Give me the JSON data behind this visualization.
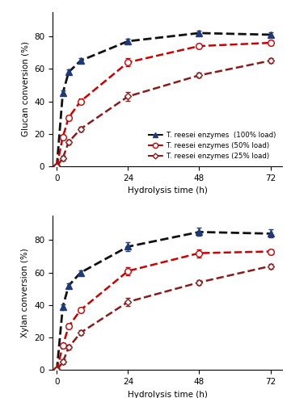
{
  "glucan": {
    "x": [
      0,
      2,
      4,
      8,
      24,
      48,
      72
    ],
    "series": [
      {
        "label": "T. reesei enzymes  (100% load)",
        "y": [
          0,
          45,
          58,
          65,
          77,
          82,
          81
        ],
        "yerr": [
          0,
          1.5,
          1.5,
          1.5,
          1.5,
          1.5,
          1.5
        ],
        "color": "#1f3a7a",
        "linecolor": "#111111",
        "marker": "^",
        "marker_hollow": false,
        "linestyle": "--",
        "markersize": 5.5,
        "linewidth": 2.0
      },
      {
        "label": "T. reesei enzymes (50% load)",
        "y": [
          0,
          18,
          30,
          40,
          64,
          74,
          76
        ],
        "yerr": [
          0,
          1.5,
          1.5,
          1.5,
          2.5,
          1.5,
          1.5
        ],
        "color": "#cc0000",
        "linecolor": "#cc0000",
        "marker": "o",
        "marker_hollow": true,
        "linestyle": "--",
        "markersize": 5.5,
        "linewidth": 1.8
      },
      {
        "label": "T. reesei enzymes (25% load)",
        "y": [
          0,
          5,
          15,
          23,
          43,
          56,
          65
        ],
        "yerr": [
          0,
          1.5,
          1.5,
          1.5,
          2.5,
          1.5,
          1.5
        ],
        "color": "#8b1a1a",
        "linecolor": "#8b1a1a",
        "marker": "D",
        "marker_hollow": true,
        "linestyle": "--",
        "markersize": 4.5,
        "linewidth": 1.8
      }
    ],
    "ylabel": "Glucan conversion (%)",
    "ylim": [
      0,
      95
    ],
    "yticks": [
      0,
      20,
      40,
      60,
      80
    ]
  },
  "xylan": {
    "x": [
      0,
      2,
      4,
      8,
      24,
      48,
      72
    ],
    "series": [
      {
        "label": "T. reesei enzymes  (100% load)",
        "y": [
          0,
          39,
          52,
          60,
          76,
          85,
          84
        ],
        "yerr": [
          0,
          1.5,
          1.5,
          1.5,
          2.5,
          2.5,
          2.5
        ],
        "color": "#1f3a7a",
        "linecolor": "#111111",
        "marker": "^",
        "marker_hollow": false,
        "linestyle": "--",
        "markersize": 5.5,
        "linewidth": 2.0
      },
      {
        "label": "T. reesei enzymes (50% load)",
        "y": [
          0,
          15,
          27,
          37,
          61,
          72,
          73
        ],
        "yerr": [
          0,
          1.5,
          1.5,
          1.5,
          2.5,
          2.5,
          1.5
        ],
        "color": "#cc0000",
        "linecolor": "#cc0000",
        "marker": "o",
        "marker_hollow": true,
        "linestyle": "--",
        "markersize": 5.5,
        "linewidth": 1.8
      },
      {
        "label": "T. reesei enzymes (25% load)",
        "y": [
          0,
          5,
          14,
          23,
          42,
          54,
          64
        ],
        "yerr": [
          0,
          1.5,
          1.5,
          1.5,
          2.5,
          1.5,
          1.5
        ],
        "color": "#8b1a1a",
        "linecolor": "#8b1a1a",
        "marker": "D",
        "marker_hollow": true,
        "linestyle": "--",
        "markersize": 4.5,
        "linewidth": 1.8
      }
    ],
    "ylabel": "Xylan conversion (%)",
    "ylim": [
      0,
      95
    ],
    "yticks": [
      0,
      20,
      40,
      60,
      80
    ]
  },
  "xlabel": "Hydrolysis time (h)",
  "xticks": [
    0,
    24,
    48,
    72
  ],
  "legend_labels": [
    "T. reesei enzymes  (100% load)",
    "T. reesei enzymes (50% load)",
    "T. reesei enzymes (25% load)"
  ],
  "background": "#ffffff"
}
